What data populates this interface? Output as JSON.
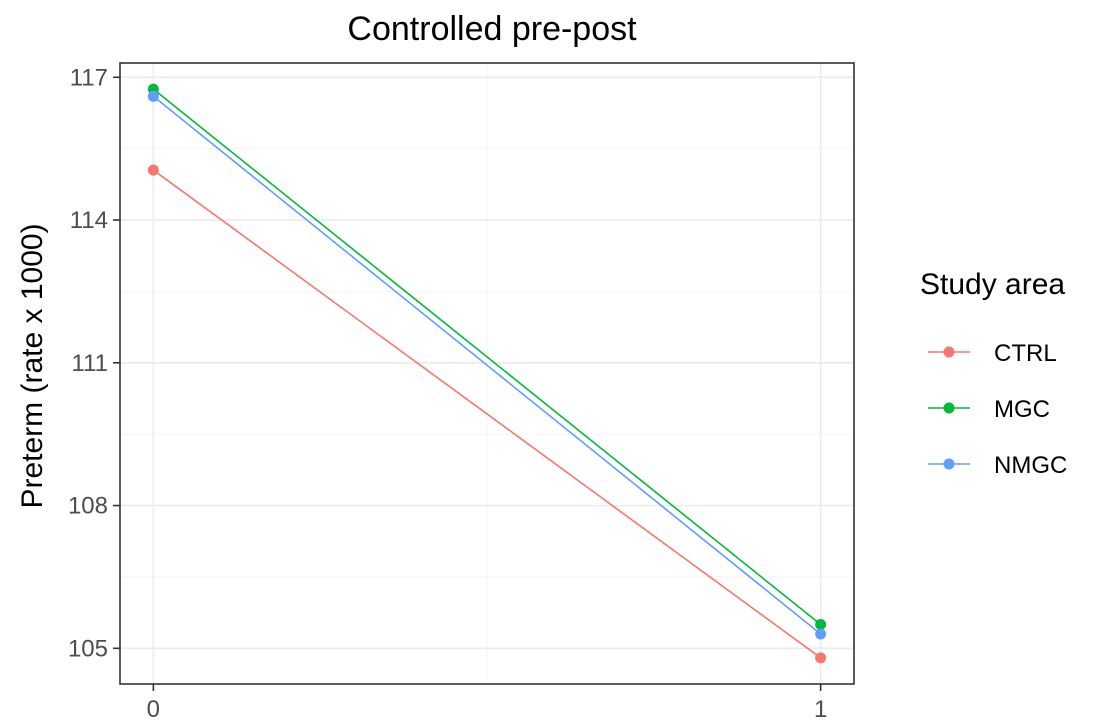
{
  "chart_data": {
    "type": "line",
    "title": "Controlled pre-post",
    "xlabel": "",
    "ylabel": "Preterm (rate x 1000)",
    "x": [
      0,
      1
    ],
    "x_ticks": [
      "0",
      "1"
    ],
    "y_ticks": [
      "105",
      "108",
      "111",
      "114",
      "117"
    ],
    "xlim": [
      -0.05,
      1.05
    ],
    "ylim": [
      104.25,
      117.3
    ],
    "grid": true,
    "legend": {
      "title": "Study area",
      "placement": "right"
    },
    "series": [
      {
        "name": "CTRL",
        "color": "#F8766D",
        "values": [
          115.05,
          104.8
        ]
      },
      {
        "name": "MGC",
        "color": "#00BA38",
        "values": [
          116.75,
          105.5
        ]
      },
      {
        "name": "NMGC",
        "color": "#619CFF",
        "values": [
          116.6,
          105.3
        ]
      }
    ]
  }
}
